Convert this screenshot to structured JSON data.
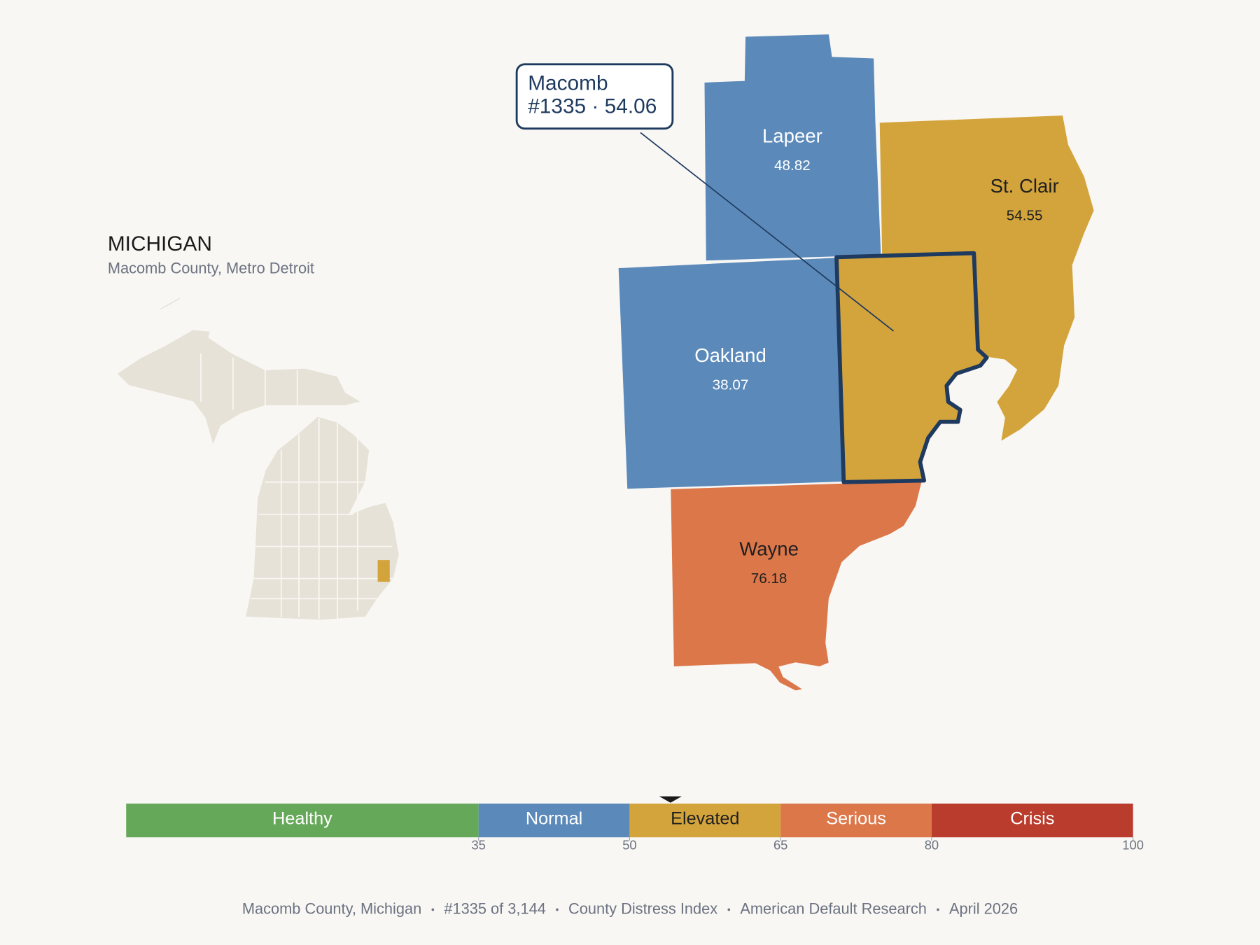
{
  "header": {
    "title": "MICHIGAN",
    "subtitle": "Macomb County, Metro Detroit"
  },
  "counties": [
    {
      "name": "Lapeer",
      "value": 48.82,
      "color": "#5b8aba",
      "text_color": "#ffffff"
    },
    {
      "name": "St. Clair",
      "value": 54.55,
      "color": "#d4a43c",
      "text_color": "#1f1f1f"
    },
    {
      "name": "Oakland",
      "value": 38.07,
      "color": "#5b8aba",
      "text_color": "#ffffff"
    },
    {
      "name": "Wayne",
      "value": 76.18,
      "color": "#dc774a",
      "text_color": "#1f1f1f"
    },
    {
      "name": "Macomb",
      "color": "#d4a43c",
      "outline": "#1f3a5f"
    }
  ],
  "callout": {
    "name": "Macomb",
    "detail": "#1335 · 54.06"
  },
  "scale": {
    "xlim": [
      0,
      100
    ],
    "xticks": [
      35,
      50,
      65,
      80,
      100
    ],
    "marker": 54.06,
    "bands": [
      {
        "label": "Healthy",
        "color": "#66a85a",
        "text_color": "#ffffff"
      },
      {
        "label": "Normal",
        "color": "#5b8aba",
        "text_color": "#ffffff"
      },
      {
        "label": "Elevated",
        "color": "#d4a43c",
        "text_color": "#1f1f1f"
      },
      {
        "label": "Serious",
        "color": "#dc774a",
        "text_color": "#ffffff"
      },
      {
        "label": "Crisis",
        "color": "#b93c2c",
        "text_color": "#ffffff"
      }
    ]
  },
  "footer": [
    "Macomb County, Michigan",
    "#1335 of 3,144",
    "County Distress Index",
    "American Default Research",
    "April 2026"
  ]
}
